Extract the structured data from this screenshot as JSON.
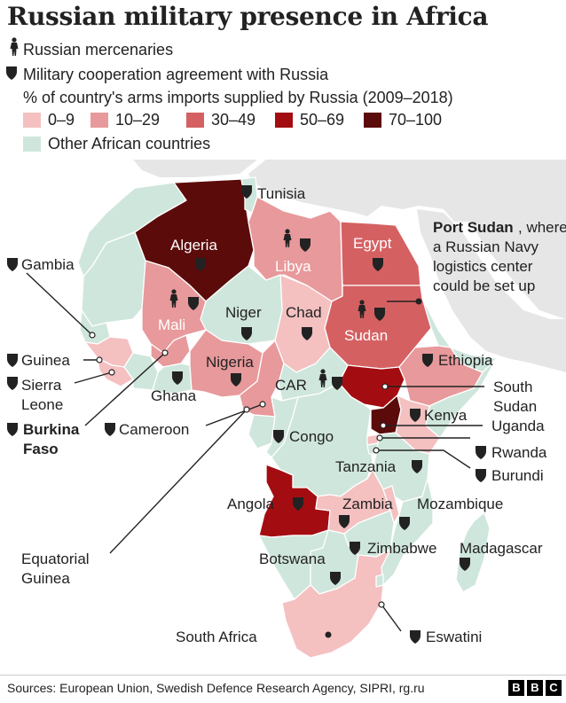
{
  "title": "Russian military presence in Africa",
  "legend": {
    "mercenaries": "Russian mercenaries",
    "agreement": "Military cooperation agreement with Russia",
    "imports_heading": "% of country's arms imports supplied by Russia (2009–2018)",
    "bins": [
      {
        "label": "0–9",
        "color": "#f4c0c0"
      },
      {
        "label": "10–29",
        "color": "#e8999b"
      },
      {
        "label": "30–49",
        "color": "#d56062"
      },
      {
        "label": "50–69",
        "color": "#a30d12"
      },
      {
        "label": "70–100",
        "color": "#5c0b0b"
      }
    ],
    "other": {
      "label": "Other African countries",
      "color": "#cfe6dc"
    }
  },
  "colors": {
    "ocean": "#ffffff",
    "land_outside": "#e5e5e5",
    "border": "#ffffff",
    "marker": "#222222"
  },
  "countries": {
    "tunisia": "Tunisia",
    "algeria": "Algeria",
    "libya": "Libya",
    "egypt": "Egypt",
    "port_sudan_bold": "Port Sudan",
    "port_sudan_1": ", where",
    "port_sudan_2": "a Russian Navy",
    "port_sudan_3": "logistics center",
    "port_sudan_4": "could be set up",
    "gambia": "Gambia",
    "mali": "Mali",
    "niger": "Niger",
    "chad": "Chad",
    "sudan": "Sudan",
    "guinea": "Guinea",
    "sierra_leone_1": "Sierra",
    "sierra_leone_2": "Leone",
    "nigeria": "Nigeria",
    "ethiopia": "Ethiopia",
    "ghana": "Ghana",
    "car": "CAR",
    "south_sudan_1": "South",
    "south_sudan_2": "Sudan",
    "burkina_1": "Burkina",
    "burkina_2": "Faso",
    "cameroon": "Cameroon",
    "kenya": "Kenya",
    "congo": "Congo",
    "uganda": "Uganda",
    "rwanda": "Rwanda",
    "tanzania": "Tanzania",
    "burundi": "Burundi",
    "angola": "Angola",
    "zambia": "Zambia",
    "mozambique": "Mozambique",
    "eq_guinea_1": "Equatorial",
    "eq_guinea_2": "Guinea",
    "zimbabwe": "Zimbabwe",
    "madagascar": "Madagascar",
    "botswana": "Botswana",
    "south_africa": "South Africa",
    "eswatini": "Eswatini"
  },
  "country_status": {
    "Algeria": {
      "imports_bin": "70–100",
      "agreement": true
    },
    "Tunisia": {
      "imports_bin": "other",
      "agreement": true
    },
    "Libya": {
      "imports_bin": "10–29",
      "agreement": true,
      "mercenaries": true
    },
    "Egypt": {
      "imports_bin": "30–49",
      "agreement": true
    },
    "Sudan": {
      "imports_bin": "30–49",
      "agreement": true,
      "mercenaries": true
    },
    "South Sudan": {
      "imports_bin": "50–69"
    },
    "Mali": {
      "imports_bin": "10–29",
      "agreement": true,
      "mercenaries": true
    },
    "Niger": {
      "imports_bin": "other",
      "agreement": true
    },
    "Chad": {
      "imports_bin": "0–9",
      "agreement": true
    },
    "Nigeria": {
      "imports_bin": "10–29",
      "agreement": true
    },
    "CAR": {
      "imports_bin": "other",
      "agreement": true,
      "mercenaries": true
    },
    "Ethiopia": {
      "imports_bin": "10–29",
      "agreement": true
    },
    "Uganda": {
      "imports_bin": "70–100"
    },
    "Angola": {
      "imports_bin": "50–69",
      "agreement": true
    },
    "South Africa": {
      "imports_bin": "0–9"
    }
  },
  "sources": "Sources: European Union, Swedish Defence Research Agency, SIPRI, rg.ru",
  "brand": [
    "B",
    "B",
    "C"
  ]
}
